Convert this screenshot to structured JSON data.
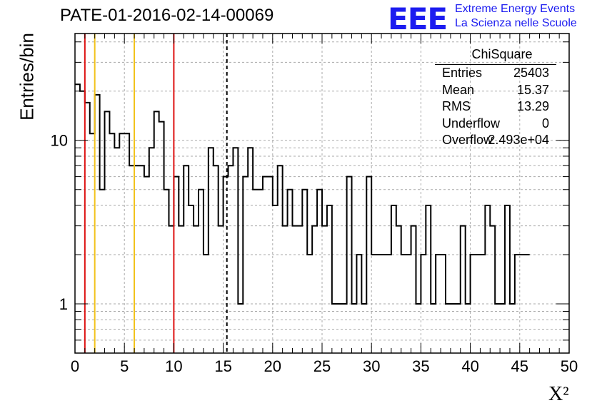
{
  "title": "PATE-01-2016-02-14-00069",
  "logo": {
    "mark": "EEE",
    "line1": "Extreme Energy Events",
    "line2": "La Scienza nelle Scuole"
  },
  "stats_box": {
    "title": "ChiSquare",
    "rows": [
      {
        "label": "Entries",
        "value": "25403"
      },
      {
        "label": "Mean",
        "value": "15.37"
      },
      {
        "label": "RMS",
        "value": "13.29"
      },
      {
        "label": "Underflow",
        "value": "0"
      },
      {
        "label": "Overflow",
        "value": "2.493e+04"
      }
    ]
  },
  "chart_data": {
    "type": "bar",
    "histogram": true,
    "xlabel": "X²",
    "ylabel": "Entries/bin",
    "xlim": [
      0,
      50
    ],
    "ylim": [
      0.5,
      45
    ],
    "yscale": "log",
    "grid": true,
    "bin_width": 0.5,
    "x_ticks": [
      "0",
      "5",
      "10",
      "15",
      "20",
      "25",
      "30",
      "35",
      "40",
      "45",
      "50"
    ],
    "y_ticks": [
      "1",
      "10"
    ],
    "values": [
      22,
      20,
      17,
      11,
      19,
      5,
      15,
      11,
      9,
      11,
      11,
      7,
      7,
      7,
      6,
      9,
      15,
      13,
      5,
      3,
      6,
      3,
      7,
      4,
      3,
      5,
      2,
      9,
      7,
      3,
      6,
      7,
      9,
      1,
      6,
      9,
      5,
      5,
      6,
      6,
      4,
      7,
      3,
      5,
      3,
      3,
      5,
      2,
      3,
      5,
      3,
      4,
      1,
      1,
      1,
      6,
      1,
      2,
      1,
      6,
      2,
      2,
      2,
      2,
      4,
      3,
      2,
      2,
      3,
      1,
      2,
      4,
      1,
      2,
      2,
      1,
      1,
      1,
      3,
      1,
      2,
      2,
      2,
      4,
      3,
      1,
      1,
      4,
      1,
      2,
      2,
      2
    ],
    "reference_lines": [
      {
        "x": 1,
        "color": "#dd1111",
        "style": "solid"
      },
      {
        "x": 2,
        "color": "#f2c21a",
        "style": "solid"
      },
      {
        "x": 6,
        "color": "#f2c21a",
        "style": "solid"
      },
      {
        "x": 10,
        "color": "#dd1111",
        "style": "solid"
      },
      {
        "x": 15.37,
        "color": "#000000",
        "style": "dashed"
      }
    ]
  }
}
